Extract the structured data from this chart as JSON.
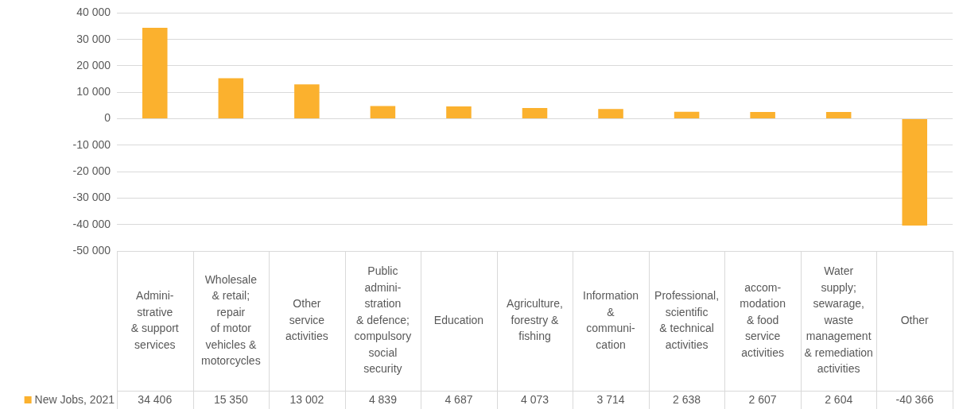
{
  "chart_data": {
    "type": "bar",
    "categories": [
      "Admini-\nstrative\n& support\nservices",
      "Wholesale\n& retail;\nrepair\nof motor\nvehicles &\nmotorcycles",
      "Other\nservice\nactivities",
      "Public\nadmini-\nstration\n& defence;\ncompulsory\nsocial\nsecurity",
      "Education",
      "Agriculture,\nforestry &\nfishing",
      "Information\n&\ncommuni-\ncation",
      "Professional,\nscientific\n& technical\nactivities",
      "accom-\nmodation\n& food\nservice\nactivities",
      "Water\nsupply;\nsewarage,\nwaste\nmanagement\n& remediation\nactivities",
      "Other"
    ],
    "series": [
      {
        "name": "New Jobs, 2021",
        "color": "#fbb12e",
        "values": [
          34406,
          15350,
          13002,
          4839,
          4687,
          4073,
          3714,
          2638,
          2607,
          2604,
          -40366
        ],
        "value_labels": [
          "34 406",
          "15 350",
          "13 002",
          "4 839",
          "4 687",
          "4 073",
          "3 714",
          "2 638",
          "2 607",
          "2 604",
          "-40 366"
        ]
      }
    ],
    "ylim": [
      -50000,
      40000
    ],
    "yticks": [
      {
        "value": -50000,
        "label": "-50 000"
      },
      {
        "value": -40000,
        "label": "-40 000"
      },
      {
        "value": -30000,
        "label": "-30 000"
      },
      {
        "value": -20000,
        "label": "-20 000"
      },
      {
        "value": -10000,
        "label": "-10 000"
      },
      0,
      {
        "value": 10000,
        "label": "10 000"
      },
      {
        "value": 20000,
        "label": "20 000"
      },
      {
        "value": 30000,
        "label": "30 000"
      },
      {
        "value": 40000,
        "label": "40 000"
      }
    ],
    "grid": "y",
    "legend": "bottom"
  }
}
